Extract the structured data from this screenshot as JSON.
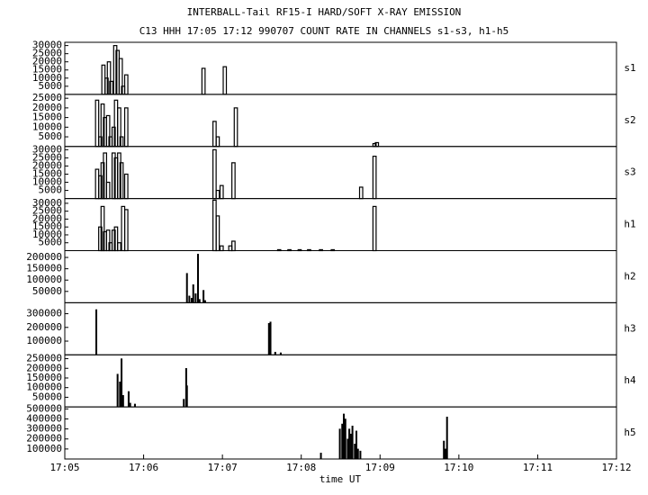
{
  "title": "INTERBALL-Tail RF15-I HARD/SOFT X-RAY EMISSION",
  "subtitle": "C13 HHH 17:05 17:12 990707  COUNT RATE IN CHANNELS s1-s3, h1-h5",
  "xlabel": "time UT",
  "xlim": [
    1025,
    1032
  ],
  "xticks": [
    {
      "value": 1025,
      "label": "17:05"
    },
    {
      "value": 1026,
      "label": "17:06"
    },
    {
      "value": 1027,
      "label": "17:07"
    },
    {
      "value": 1028,
      "label": "17:08"
    },
    {
      "value": 1029,
      "label": "17:09"
    },
    {
      "value": 1030,
      "label": "17:10"
    },
    {
      "value": 1031,
      "label": "17:11"
    },
    {
      "value": 1032,
      "label": "17:12"
    }
  ],
  "chart_data": [
    {
      "type": "bar",
      "label": "s1",
      "style": "outline",
      "ylim": [
        0,
        32000
      ],
      "yticks": [
        5000,
        10000,
        15000,
        20000,
        25000,
        30000
      ],
      "x": [
        1025.49,
        1025.53,
        1025.56,
        1025.59,
        1025.64,
        1025.67,
        1025.71,
        1025.74,
        1025.78,
        1026.76,
        1027.03
      ],
      "values": [
        18000,
        10000,
        20000,
        8000,
        30000,
        27000,
        22000,
        5000,
        12000,
        16000,
        17000
      ]
    },
    {
      "type": "bar",
      "label": "s2",
      "style": "outline",
      "ylim": [
        0,
        27000
      ],
      "yticks": [
        5000,
        10000,
        15000,
        20000,
        25000
      ],
      "x": [
        1025.41,
        1025.45,
        1025.48,
        1025.51,
        1025.55,
        1025.58,
        1025.62,
        1025.65,
        1025.69,
        1025.72,
        1025.78,
        1026.9,
        1026.94,
        1027.17,
        1028.93,
        1028.96
      ],
      "values": [
        24000,
        5000,
        22000,
        15000,
        16000,
        5000,
        10000,
        24000,
        20000,
        5000,
        20000,
        13000,
        5000,
        20000,
        1500,
        2000
      ]
    },
    {
      "type": "bar",
      "label": "s3",
      "style": "outline",
      "ylim": [
        0,
        32000
      ],
      "yticks": [
        5000,
        10000,
        15000,
        20000,
        25000,
        30000
      ],
      "x": [
        1025.41,
        1025.45,
        1025.48,
        1025.51,
        1025.55,
        1025.62,
        1025.65,
        1025.69,
        1025.72,
        1025.78,
        1026.9,
        1026.94,
        1026.99,
        1027.14,
        1028.76,
        1028.93
      ],
      "values": [
        18000,
        14000,
        22000,
        28000,
        10000,
        28000,
        25000,
        28000,
        22000,
        15000,
        30000,
        5000,
        8000,
        22000,
        7000,
        26000
      ]
    },
    {
      "type": "bar",
      "label": "h1",
      "style": "outline",
      "ylim": [
        0,
        33000
      ],
      "yticks": [
        5000,
        10000,
        15000,
        20000,
        25000,
        30000
      ],
      "x": [
        1025.45,
        1025.48,
        1025.51,
        1025.55,
        1025.58,
        1025.62,
        1025.65,
        1025.69,
        1025.74,
        1025.78,
        1026.9,
        1026.94,
        1026.99,
        1027.1,
        1027.14,
        1027.72,
        1027.85,
        1027.98,
        1028.1,
        1028.25,
        1028.4,
        1028.93
      ],
      "values": [
        15000,
        28000,
        12000,
        13000,
        5000,
        13000,
        15000,
        5000,
        28000,
        26000,
        32000,
        22000,
        3000,
        3000,
        6000,
        600,
        600,
        600,
        600,
        600,
        600,
        28000
      ]
    },
    {
      "type": "bar",
      "label": "h2",
      "style": "filled",
      "ylim": [
        0,
        230000
      ],
      "yticks": [
        50000,
        100000,
        150000,
        200000
      ],
      "x": [
        1026.55,
        1026.58,
        1026.61,
        1026.63,
        1026.66,
        1026.69,
        1026.71,
        1026.76,
        1026.78
      ],
      "values": [
        130000,
        30000,
        20000,
        80000,
        40000,
        215000,
        15000,
        55000,
        10000
      ]
    },
    {
      "type": "bar",
      "label": "h3",
      "style": "filled",
      "ylim": [
        0,
        380000
      ],
      "yticks": [
        100000,
        200000,
        300000
      ],
      "x": [
        1025.4,
        1027.59,
        1027.61,
        1027.67,
        1027.74
      ],
      "values": [
        330000,
        230000,
        240000,
        20000,
        15000
      ]
    },
    {
      "type": "bar",
      "label": "h4",
      "style": "filled",
      "ylim": [
        0,
        270000
      ],
      "yticks": [
        50000,
        100000,
        150000,
        200000,
        250000
      ],
      "x": [
        1025.67,
        1025.7,
        1025.72,
        1025.74,
        1025.81,
        1025.83,
        1025.89,
        1026.51,
        1026.54,
        1026.55
      ],
      "values": [
        170000,
        130000,
        250000,
        60000,
        80000,
        20000,
        15000,
        40000,
        200000,
        110000
      ]
    },
    {
      "type": "bar",
      "label": "h5",
      "style": "filled",
      "ylim": [
        0,
        520000
      ],
      "yticks": [
        100000,
        200000,
        300000,
        400000,
        500000
      ],
      "x": [
        1028.25,
        1028.49,
        1028.52,
        1028.54,
        1028.56,
        1028.59,
        1028.61,
        1028.63,
        1028.65,
        1028.68,
        1028.7,
        1028.72,
        1028.75,
        1029.81,
        1029.83,
        1029.85
      ],
      "values": [
        60000,
        300000,
        350000,
        450000,
        400000,
        200000,
        300000,
        250000,
        330000,
        150000,
        280000,
        100000,
        80000,
        180000,
        100000,
        420000
      ]
    }
  ]
}
